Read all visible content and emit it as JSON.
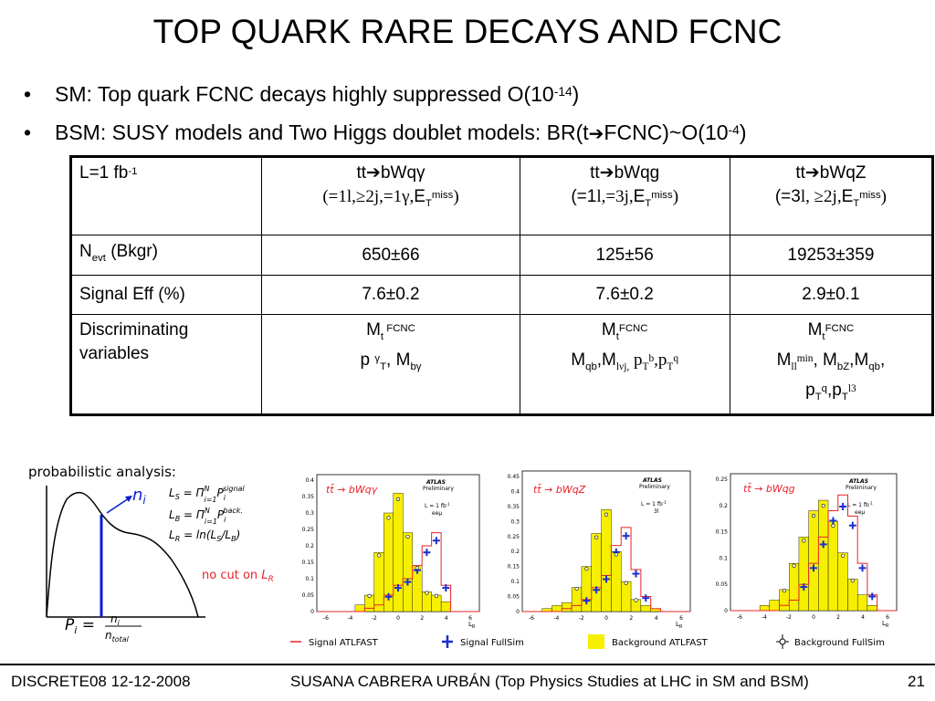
{
  "slide": {
    "title": "TOP QUARK RARE DECAYS AND FCNC",
    "bullet1": {
      "text": "SM: Top quark FCNC decays highly suppressed O(10",
      "exp": "-14",
      "end": ")"
    },
    "bullet2": {
      "text": "BSM: SUSY models and Two Higgs doublet models: BR(t",
      "arrow": "➔",
      "mid": "FCNC)~O(10",
      "exp": "-4",
      "end": ")"
    }
  },
  "table": {
    "lumi": {
      "label": "L=1 fb",
      "exp": "-1"
    },
    "columns": [
      {
        "decay": "tt➔bWqγ",
        "sel_a": "(=1",
        "sel_b": "l,≥2j,=1γ,",
        "sel_c": "E",
        "sel_sub": "T",
        "sel_sup": "miss",
        "sel_end": ")"
      },
      {
        "decay": "tt➔bWqg",
        "sel_a": "(=1",
        "sel_b": "l,=3j,",
        "sel_c": "E",
        "sel_sub": "T",
        "sel_sup": "miss",
        "sel_end": ")"
      },
      {
        "decay": "tt➔bWqZ",
        "sel_a": "(=3",
        "sel_b": "l, ≥2j,",
        "sel_c": "E",
        "sel_sub": "T",
        "sel_sup": "miss",
        "sel_end": ")"
      }
    ],
    "row_nevt": {
      "label": "N",
      "label_sub": "evt",
      "label_rest": " (Bkgr)",
      "values": [
        "650±66",
        "125±56",
        "19253±359"
      ]
    },
    "row_eff": {
      "label": "Signal Eff (%)",
      "values": [
        "7.6±0.2",
        "7.6±0.2",
        "2.9±0.1"
      ]
    },
    "row_disc": {
      "label_line1": "Discriminating",
      "label_line2": "variables",
      "col1": {
        "m": "M",
        "m_sub": "t",
        "m_sup": " FCNC",
        "p": "p ",
        "p_sup": "γ",
        "p_sub": "T",
        "mb": ", M",
        "mb_sub": "bγ"
      },
      "col2": {
        "m": "M",
        "m_sub": "t",
        "m_sup": "FCNC",
        "l2_a": "M",
        "l2_a_sub": "qb",
        "l2_b": ",M",
        "l2_b_sub": "lνj,",
        "l2_c": " p",
        "l2_c_sub": "T",
        "l2_c_sup": "b",
        "l2_d": ",p",
        "l2_d_sub": "T",
        "l2_d_sup": "q"
      },
      "col3": {
        "m": "M",
        "m_sub": "t",
        "m_sup": "FCNC",
        "l2_a": "M",
        "l2_a_sub": "ll",
        "l2_a_sup": "min",
        "l2_b": ", M",
        "l2_b_sub": "bZ",
        "l2_c": ",M",
        "l2_c_sub": "qb",
        "l2_d": ",",
        "l3_a": "p",
        "l3_a_sub": "T",
        "l3_a_sup": "q",
        "l3_b": ",p",
        "l3_b_sub": "T",
        "l3_b_sup": "l3"
      }
    }
  },
  "diagram": {
    "title": "probabilistic analysis:",
    "n_label": "n",
    "n_sub": "i",
    "eq1": "L",
    "eq1_sub": "S",
    "eq1_rest": " = Π",
    "eq1_pi_sup": "N",
    "eq1_pi_sub": "i=1",
    "eq1_p": "P",
    "eq1_p_sub": "i",
    "eq1_p_sup": "signal",
    "eq2": "L",
    "eq2_sub": "B",
    "eq2_rest": " = Π",
    "eq2_pi_sup": "N",
    "eq2_pi_sub": "i=1",
    "eq2_p": "P",
    "eq2_p_sub": "i",
    "eq2_p_sup": "back.",
    "eq3": "L",
    "eq3_sub": "R",
    "eq3_rest": " = ln(L",
    "eq3_s": "S",
    "eq3_mid": "/L",
    "eq3_b": "B",
    "eq3_end": ")",
    "pi_label": "P",
    "pi_sub": "i",
    "pi_eq": " = ",
    "frac_num": "n",
    "frac_num_sub": "i",
    "frac_den": "n",
    "frac_den_sub": "total",
    "nocut": "no cut on ",
    "nocut_var": "L",
    "nocut_sub": "R"
  },
  "plots": [
    {
      "title": "tt̄ → bWqγ",
      "atlas": "ATLAS",
      "prelim": "Preliminary",
      "lumi": "L = 1 fb",
      "lumi_sup": "-1",
      "chan": "eeμ",
      "xlabel": "L",
      "xlabel_sub": "R",
      "yticks": [
        "0.4",
        "0.35",
        "0.3",
        "0.25",
        "0.2",
        "0.15",
        "0.1",
        "0.05",
        "0"
      ],
      "xticks": [
        "-6",
        "-4",
        "-2",
        "0",
        "2",
        "4",
        "6"
      ]
    },
    {
      "title": "tt̄ → bWqZ",
      "atlas": "ATLAS",
      "prelim": "Preliminary",
      "lumi": "L = 1 fb",
      "lumi_sup": "-1",
      "chan": "3l",
      "xlabel": "L",
      "xlabel_sub": "R",
      "yticks": [
        "0.45",
        "0.4",
        "0.35",
        "0.3",
        "0.25",
        "0.2",
        "0.15",
        "0.1",
        "0.05",
        "0"
      ],
      "xticks": [
        "-6",
        "-4",
        "-2",
        "0",
        "2",
        "4",
        "6"
      ]
    },
    {
      "title": "tt̄ → bWqg",
      "atlas": "ATLAS",
      "prelim": "Preliminary",
      "lumi": "L = 1 fb",
      "lumi_sup": "-1",
      "chan": "eeμ",
      "xlabel": "L",
      "xlabel_sub": "R",
      "yticks": [
        "0.25",
        "0.2",
        "0.15",
        "0.1",
        "0.05",
        "0"
      ],
      "xticks": [
        "-6",
        "-4",
        "-2",
        "0",
        "2",
        "4",
        "6"
      ]
    }
  ],
  "legend": {
    "signal_atlfast": "Signal ATLFAST",
    "signal_fullsim": "Signal FullSim",
    "bkg_atlfast": "Background ATLFAST",
    "bkg_fullsim": "Background FullSim"
  },
  "footer": {
    "left": "DISCRETE08 12-12-2008",
    "center": "SUSANA CABRERA URBÁN (Top Physics Studies at LHC in SM and BSM)",
    "page": "21"
  },
  "colors": {
    "signal": "#e8232a",
    "fullsim": "#1a2fd0",
    "background": "#f6f000",
    "curve_line": "#0a1ed0",
    "nocut": "#e8232a"
  }
}
